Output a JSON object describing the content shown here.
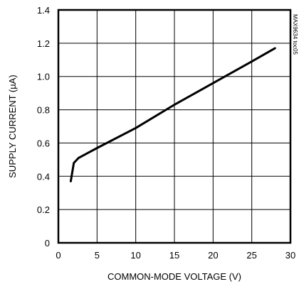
{
  "chart_data": {
    "type": "line",
    "title": "",
    "xlabel": "COMMON-MODE VOLTAGE (V)",
    "ylabel": "SUPPLY CURRENT (µA)",
    "xlim": [
      0,
      30
    ],
    "ylim": [
      0,
      1.4
    ],
    "xticks": [
      "0",
      "5",
      "10",
      "15",
      "20",
      "25",
      "30"
    ],
    "yticks": [
      "0",
      "0.2",
      "0.4",
      "0.6",
      "0.8",
      "1.0",
      "1.2",
      "1.4"
    ],
    "grid": true,
    "watermark": "MAX9634 toc05",
    "series": [
      {
        "name": "",
        "x": [
          1.6,
          2.0,
          2.6,
          3.0,
          5.0,
          10.0,
          15.0,
          20.0,
          25.0,
          28.0
        ],
        "y": [
          0.37,
          0.48,
          0.51,
          0.52,
          0.57,
          0.69,
          0.83,
          0.96,
          1.09,
          1.17
        ]
      }
    ]
  }
}
